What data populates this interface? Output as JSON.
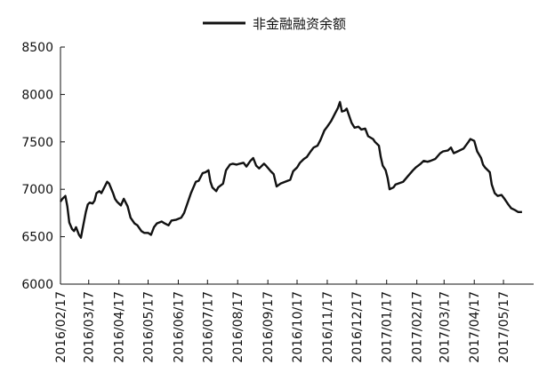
{
  "chart_data": {
    "type": "line",
    "title": "",
    "xlabel": "",
    "ylabel": "",
    "ylim": [
      6000,
      8500
    ],
    "yticks": [
      6000,
      6500,
      7000,
      7500,
      8000,
      8500
    ],
    "xticks": [
      "2016/02/17",
      "2016/03/17",
      "2016/04/17",
      "2016/05/17",
      "2016/06/17",
      "2016/07/17",
      "2016/08/17",
      "2016/09/17",
      "2016/10/17",
      "2016/11/17",
      "2016/12/17",
      "2017/01/17",
      "2017/02/17",
      "2017/03/17",
      "2017/04/17",
      "2017/05/17"
    ],
    "xlim": [
      "2016/02/17",
      "2017/06/17"
    ],
    "grid": false,
    "legend_position": "top-center",
    "series": [
      {
        "name": "非金融融资余额",
        "color": "#111111",
        "points": [
          [
            "2016/02/17",
            6870
          ],
          [
            "2016/02/19",
            6900
          ],
          [
            "2016/02/22",
            6930
          ],
          [
            "2016/02/24",
            6820
          ],
          [
            "2016/02/26",
            6650
          ],
          [
            "2016/02/29",
            6580
          ],
          [
            "2016/03/02",
            6560
          ],
          [
            "2016/03/04",
            6600
          ],
          [
            "2016/03/07",
            6520
          ],
          [
            "2016/03/09",
            6490
          ],
          [
            "2016/03/11",
            6600
          ],
          [
            "2016/03/14",
            6760
          ],
          [
            "2016/03/16",
            6840
          ],
          [
            "2016/03/18",
            6860
          ],
          [
            "2016/03/21",
            6850
          ],
          [
            "2016/03/23",
            6880
          ],
          [
            "2016/03/25",
            6960
          ],
          [
            "2016/03/28",
            6980
          ],
          [
            "2016/03/30",
            6960
          ],
          [
            "2016/04/01",
            7000
          ],
          [
            "2016/04/05",
            7080
          ],
          [
            "2016/04/07",
            7060
          ],
          [
            "2016/04/11",
            6960
          ],
          [
            "2016/04/13",
            6900
          ],
          [
            "2016/04/15",
            6870
          ],
          [
            "2016/04/19",
            6830
          ],
          [
            "2016/04/22",
            6900
          ],
          [
            "2016/04/26",
            6820
          ],
          [
            "2016/04/29",
            6700
          ],
          [
            "2016/05/03",
            6640
          ],
          [
            "2016/05/06",
            6620
          ],
          [
            "2016/05/10",
            6560
          ],
          [
            "2016/05/13",
            6540
          ],
          [
            "2016/05/17",
            6540
          ],
          [
            "2016/05/20",
            6520
          ],
          [
            "2016/05/23",
            6600
          ],
          [
            "2016/05/26",
            6640
          ],
          [
            "2016/05/31",
            6660
          ],
          [
            "2016/06/03",
            6640
          ],
          [
            "2016/06/07",
            6620
          ],
          [
            "2016/06/10",
            6670
          ],
          [
            "2016/06/15",
            6680
          ],
          [
            "2016/06/20",
            6700
          ],
          [
            "2016/06/23",
            6750
          ],
          [
            "2016/06/27",
            6870
          ],
          [
            "2016/06/30",
            6960
          ],
          [
            "2016/07/05",
            7080
          ],
          [
            "2016/07/08",
            7090
          ],
          [
            "2016/07/12",
            7170
          ],
          [
            "2016/07/15",
            7180
          ],
          [
            "2016/07/18",
            7200
          ],
          [
            "2016/07/20",
            7080
          ],
          [
            "2016/07/22",
            7020
          ],
          [
            "2016/07/26",
            6980
          ],
          [
            "2016/07/28",
            7020
          ],
          [
            "2016/08/02",
            7060
          ],
          [
            "2016/08/05",
            7200
          ],
          [
            "2016/08/09",
            7260
          ],
          [
            "2016/08/12",
            7270
          ],
          [
            "2016/08/16",
            7260
          ],
          [
            "2016/08/19",
            7270
          ],
          [
            "2016/08/23",
            7280
          ],
          [
            "2016/08/26",
            7240
          ],
          [
            "2016/08/30",
            7300
          ],
          [
            "2016/09/02",
            7330
          ],
          [
            "2016/09/05",
            7250
          ],
          [
            "2016/09/08",
            7220
          ],
          [
            "2016/09/13",
            7270
          ],
          [
            "2016/09/15",
            7250
          ],
          [
            "2016/09/20",
            7190
          ],
          [
            "2016/09/23",
            7160
          ],
          [
            "2016/09/26",
            7030
          ],
          [
            "2016/09/30",
            7060
          ],
          [
            "2016/10/10",
            7100
          ],
          [
            "2016/10/13",
            7190
          ],
          [
            "2016/10/17",
            7230
          ],
          [
            "2016/10/20",
            7280
          ],
          [
            "2016/10/24",
            7320
          ],
          [
            "2016/10/27",
            7340
          ],
          [
            "2016/10/31",
            7400
          ],
          [
            "2016/11/03",
            7440
          ],
          [
            "2016/11/07",
            7460
          ],
          [
            "2016/11/10",
            7520
          ],
          [
            "2016/11/14",
            7620
          ],
          [
            "2016/11/17",
            7660
          ],
          [
            "2016/11/21",
            7720
          ],
          [
            "2016/11/24",
            7780
          ],
          [
            "2016/11/28",
            7860
          ],
          [
            "2016/11/30",
            7920
          ],
          [
            "2016/12/02",
            7820
          ],
          [
            "2016/12/05",
            7830
          ],
          [
            "2016/12/07",
            7850
          ],
          [
            "2016/12/09",
            7790
          ],
          [
            "2016/12/12",
            7700
          ],
          [
            "2016/12/15",
            7650
          ],
          [
            "2016/12/19",
            7660
          ],
          [
            "2016/12/22",
            7630
          ],
          [
            "2016/12/26",
            7640
          ],
          [
            "2016/12/29",
            7560
          ],
          [
            "2017/01/03",
            7530
          ],
          [
            "2017/01/05",
            7500
          ],
          [
            "2017/01/09",
            7460
          ],
          [
            "2017/01/11",
            7340
          ],
          [
            "2017/01/13",
            7250
          ],
          [
            "2017/01/16",
            7200
          ],
          [
            "2017/01/18",
            7120
          ],
          [
            "2017/01/20",
            7000
          ],
          [
            "2017/01/24",
            7020
          ],
          [
            "2017/01/26",
            7050
          ],
          [
            "2017/02/03",
            7080
          ],
          [
            "2017/02/08",
            7140
          ],
          [
            "2017/02/13",
            7200
          ],
          [
            "2017/02/16",
            7230
          ],
          [
            "2017/02/21",
            7270
          ],
          [
            "2017/02/24",
            7300
          ],
          [
            "2017/02/28",
            7290
          ],
          [
            "2017/03/03",
            7300
          ],
          [
            "2017/03/08",
            7320
          ],
          [
            "2017/03/13",
            7380
          ],
          [
            "2017/03/16",
            7400
          ],
          [
            "2017/03/21",
            7410
          ],
          [
            "2017/03/24",
            7440
          ],
          [
            "2017/03/27",
            7380
          ],
          [
            "2017/03/31",
            7400
          ],
          [
            "2017/04/06",
            7430
          ],
          [
            "2017/04/11",
            7500
          ],
          [
            "2017/04/13",
            7530
          ],
          [
            "2017/04/17",
            7510
          ],
          [
            "2017/04/20",
            7400
          ],
          [
            "2017/04/24",
            7330
          ],
          [
            "2017/04/26",
            7260
          ],
          [
            "2017/04/28",
            7230
          ],
          [
            "2017/05/03",
            7180
          ],
          [
            "2017/05/05",
            7050
          ],
          [
            "2017/05/08",
            6960
          ],
          [
            "2017/05/11",
            6930
          ],
          [
            "2017/05/15",
            6940
          ],
          [
            "2017/05/18",
            6900
          ],
          [
            "2017/05/22",
            6840
          ],
          [
            "2017/05/25",
            6800
          ],
          [
            "2017/05/29",
            6780
          ],
          [
            "2017/06/01",
            6760
          ],
          [
            "2017/06/05",
            6760
          ]
        ]
      }
    ]
  }
}
